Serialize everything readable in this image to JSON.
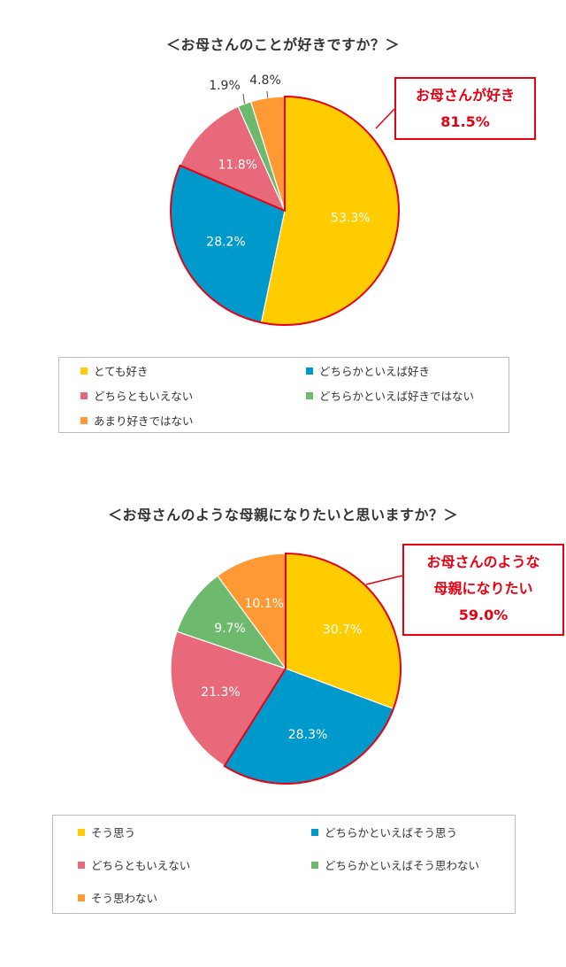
{
  "chart_data": [
    {
      "type": "pie",
      "title": "＜お母さんのことが好きですか？＞",
      "categories": [
        "とても好き",
        "どちらかといえば好き",
        "どちらともいえない",
        "どちらかといえば好きではない",
        "あまり好きではない"
      ],
      "values": [
        53.3,
        28.2,
        11.8,
        1.9,
        4.8
      ],
      "data_labels": [
        "53.3%",
        "28.2%",
        "11.8%",
        "1.9%",
        "4.8%"
      ],
      "colors": [
        "#FFCC00",
        "#0099CC",
        "#E8697A",
        "#6DB96D",
        "#FF9933"
      ],
      "legend_position": "bottom",
      "highlight": {
        "slices": [
          0,
          1
        ],
        "line1": "お母さんが好き",
        "line2": "81.5%"
      }
    },
    {
      "type": "pie",
      "title": "＜お母さんのような母親になりたいと思いますか？＞",
      "categories": [
        "そう思う",
        "どちらかといえばそう思う",
        "どちらともいえない",
        "どちらかといえばそう思わない",
        "そう思わない"
      ],
      "values": [
        30.7,
        28.3,
        21.3,
        9.7,
        10.1
      ],
      "data_labels": [
        "30.7%",
        "28.3%",
        "21.3%",
        "9.7%",
        "10.1%"
      ],
      "colors": [
        "#FFCC00",
        "#0099CC",
        "#E8697A",
        "#6DB96D",
        "#FF9933"
      ],
      "legend_position": "bottom",
      "highlight": {
        "slices": [
          0,
          1
        ],
        "line1": "お母さんのような",
        "line2": "母親になりたい",
        "line3": "59.0%"
      }
    }
  ]
}
